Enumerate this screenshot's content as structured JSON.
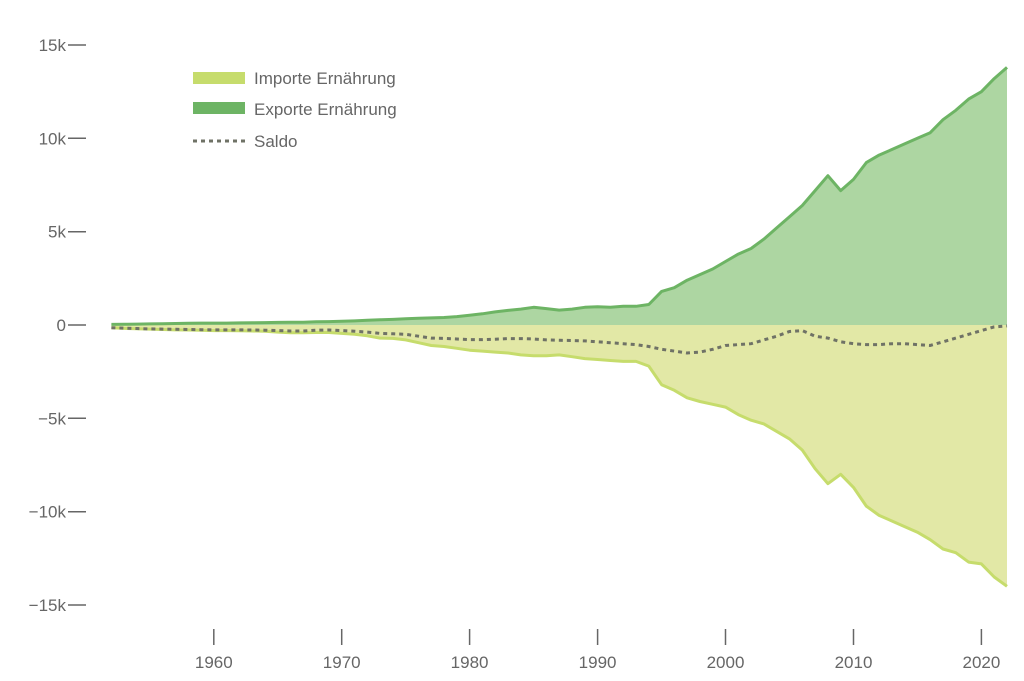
{
  "chart_data": {
    "type": "area",
    "title": "",
    "xlabel": "",
    "ylabel": "",
    "xlim": [
      1951.5,
      2022
    ],
    "ylim": [
      -16000,
      15000
    ],
    "y_ticks": [
      15000,
      10000,
      5000,
      0,
      -5000,
      -10000,
      -15000
    ],
    "y_tick_labels": [
      "15k",
      "10k",
      "5k",
      "0",
      "−5k",
      "−10k",
      "−15k"
    ],
    "x_ticks": [
      1960,
      1970,
      1980,
      1990,
      2000,
      2010,
      2020
    ],
    "x_tick_labels": [
      "1960",
      "1970",
      "1980",
      "1990",
      "2000",
      "2010",
      "2020"
    ],
    "grid": false,
    "legend_position": "top-left",
    "colors": {
      "imports_fill": "#e2e8a6",
      "imports_line": "#c6dc6c",
      "exports_fill": "#add6a2",
      "exports_line": "#6db464",
      "saldo_line": "#6f7266",
      "axis_text": "#666666"
    },
    "x": [
      1952,
      1953,
      1954,
      1955,
      1956,
      1957,
      1958,
      1959,
      1960,
      1961,
      1962,
      1963,
      1964,
      1965,
      1966,
      1967,
      1968,
      1969,
      1970,
      1971,
      1972,
      1973,
      1974,
      1975,
      1976,
      1977,
      1978,
      1979,
      1980,
      1981,
      1982,
      1983,
      1984,
      1985,
      1986,
      1987,
      1988,
      1989,
      1990,
      1991,
      1992,
      1993,
      1994,
      1995,
      1996,
      1997,
      1998,
      1999,
      2000,
      2001,
      2002,
      2003,
      2004,
      2005,
      2006,
      2007,
      2008,
      2009,
      2010,
      2011,
      2012,
      2013,
      2014,
      2015,
      2016,
      2017,
      2018,
      2019,
      2020,
      2021,
      2022
    ],
    "series": [
      {
        "name": "Importe Ernährung",
        "values": [
          -150,
          -180,
          -200,
          -220,
          -240,
          -260,
          -270,
          -280,
          -300,
          -300,
          -310,
          -320,
          -340,
          -380,
          -420,
          -420,
          -400,
          -400,
          -450,
          -500,
          -580,
          -700,
          -720,
          -800,
          -950,
          -1100,
          -1150,
          -1250,
          -1350,
          -1400,
          -1450,
          -1500,
          -1600,
          -1650,
          -1650,
          -1600,
          -1700,
          -1800,
          -1850,
          -1900,
          -1950,
          -1950,
          -2200,
          -3200,
          -3500,
          -3900,
          -4100,
          -4250,
          -4400,
          -4800,
          -5100,
          -5300,
          -5700,
          -6100,
          -6700,
          -7700,
          -8500,
          -8000,
          -8700,
          -9700,
          -10200,
          -10500,
          -10800,
          -11100,
          -11500,
          -12000,
          -12200,
          -12700,
          -12800,
          -13500,
          -14000
        ]
      },
      {
        "name": "Exporte Ernährung",
        "values": [
          30,
          40,
          50,
          60,
          70,
          80,
          90,
          100,
          100,
          100,
          110,
          120,
          130,
          140,
          150,
          150,
          170,
          180,
          200,
          220,
          250,
          280,
          300,
          330,
          360,
          380,
          400,
          450,
          520,
          600,
          700,
          780,
          850,
          950,
          880,
          800,
          850,
          950,
          980,
          950,
          1000,
          1000,
          1100,
          1800,
          2000,
          2400,
          2700,
          3000,
          3400,
          3800,
          4100,
          4600,
          5200,
          5800,
          6400,
          7200,
          8000,
          7200,
          7800,
          8700,
          9100,
          9400,
          9700,
          10000,
          10300,
          11000,
          11500,
          12100,
          12500,
          13200,
          13800
        ]
      },
      {
        "name": "Saldo",
        "values": [
          -150,
          -170,
          -190,
          -210,
          -220,
          -230,
          -240,
          -250,
          -260,
          -260,
          -260,
          -270,
          -280,
          -300,
          -320,
          -320,
          -280,
          -270,
          -300,
          -330,
          -380,
          -450,
          -470,
          -500,
          -600,
          -700,
          -720,
          -750,
          -780,
          -780,
          -760,
          -730,
          -730,
          -750,
          -800,
          -820,
          -830,
          -850,
          -900,
          -950,
          -1000,
          -1050,
          -1150,
          -1300,
          -1400,
          -1500,
          -1450,
          -1300,
          -1100,
          -1050,
          -1000,
          -800,
          -600,
          -350,
          -300,
          -600,
          -700,
          -900,
          -1000,
          -1050,
          -1050,
          -1000,
          -1000,
          -1050,
          -1100,
          -900,
          -700,
          -500,
          -300,
          -100,
          -50
        ]
      }
    ]
  }
}
